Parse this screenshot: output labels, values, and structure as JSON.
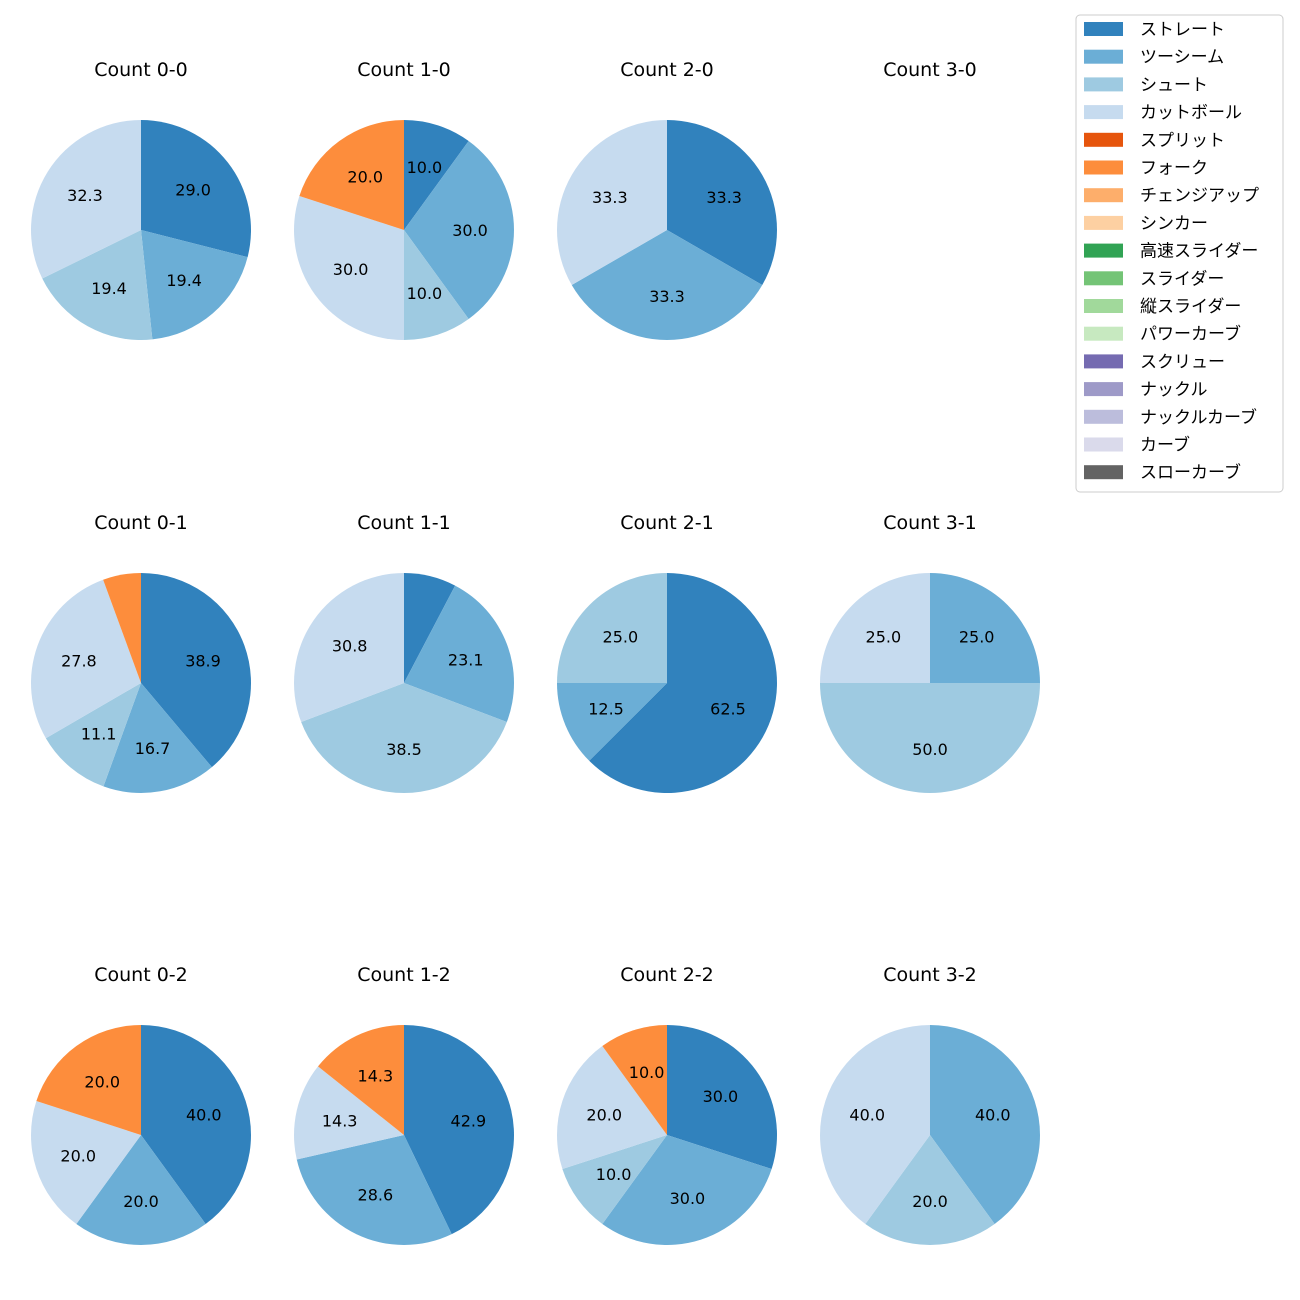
{
  "chart_data": {
    "type": "pie",
    "legend": {
      "placement": "top-right",
      "entries": [
        {
          "name": "ストレート",
          "color": "#3182bd"
        },
        {
          "name": "ツーシーム",
          "color": "#6baed6"
        },
        {
          "name": "シュート",
          "color": "#9ecae1"
        },
        {
          "name": "カットボール",
          "color": "#c6dbef"
        },
        {
          "name": "スプリット",
          "color": "#e6550d"
        },
        {
          "name": "フォーク",
          "color": "#fd8d3c"
        },
        {
          "name": "チェンジアップ",
          "color": "#fdae6b"
        },
        {
          "name": "シンカー",
          "color": "#fdd0a2"
        },
        {
          "name": "高速スライダー",
          "color": "#31a354"
        },
        {
          "name": "スライダー",
          "color": "#74c476"
        },
        {
          "name": "縦スライダー",
          "color": "#a1d99b"
        },
        {
          "name": "パワーカーブ",
          "color": "#c7e9c0"
        },
        {
          "name": "スクリュー",
          "color": "#756bb1"
        },
        {
          "name": "ナックル",
          "color": "#9e9ac8"
        },
        {
          "name": "ナックルカーブ",
          "color": "#bcbddc"
        },
        {
          "name": "カーブ",
          "color": "#dadaeb"
        },
        {
          "name": "スローカーブ",
          "color": "#636363"
        }
      ]
    },
    "pies": [
      {
        "title": "Count 0-0",
        "slices": [
          {
            "pitch": "ストレート",
            "value": 29.0,
            "label": "29.0"
          },
          {
            "pitch": "ツーシーム",
            "value": 19.4,
            "label": "19.4"
          },
          {
            "pitch": "シュート",
            "value": 19.4,
            "label": "19.4"
          },
          {
            "pitch": "カットボール",
            "value": 32.3,
            "label": "32.3"
          }
        ]
      },
      {
        "title": "Count 1-0",
        "slices": [
          {
            "pitch": "ストレート",
            "value": 10.0,
            "label": "10.0"
          },
          {
            "pitch": "ツーシーム",
            "value": 30.0,
            "label": "30.0"
          },
          {
            "pitch": "シュート",
            "value": 10.0,
            "label": "10.0"
          },
          {
            "pitch": "カットボール",
            "value": 30.0,
            "label": "30.0"
          },
          {
            "pitch": "フォーク",
            "value": 20.0,
            "label": "20.0"
          }
        ]
      },
      {
        "title": "Count 2-0",
        "slices": [
          {
            "pitch": "ストレート",
            "value": 33.3,
            "label": "33.3"
          },
          {
            "pitch": "ツーシーム",
            "value": 33.3,
            "label": "33.3"
          },
          {
            "pitch": "カットボール",
            "value": 33.3,
            "label": "33.3"
          }
        ]
      },
      {
        "title": "Count 3-0",
        "slices": []
      },
      {
        "title": "Count 0-1",
        "slices": [
          {
            "pitch": "ストレート",
            "value": 38.9,
            "label": "38.9"
          },
          {
            "pitch": "ツーシーム",
            "value": 16.7,
            "label": "16.7"
          },
          {
            "pitch": "シュート",
            "value": 11.1,
            "label": "11.1"
          },
          {
            "pitch": "カットボール",
            "value": 27.8,
            "label": "27.8"
          },
          {
            "pitch": "フォーク",
            "value": 5.6,
            "label": ""
          }
        ]
      },
      {
        "title": "Count 1-1",
        "slices": [
          {
            "pitch": "ストレート",
            "value": 7.7,
            "label": ""
          },
          {
            "pitch": "ツーシーム",
            "value": 23.1,
            "label": "23.1"
          },
          {
            "pitch": "シュート",
            "value": 38.5,
            "label": "38.5"
          },
          {
            "pitch": "カットボール",
            "value": 30.8,
            "label": "30.8"
          }
        ]
      },
      {
        "title": "Count 2-1",
        "slices": [
          {
            "pitch": "ストレート",
            "value": 62.5,
            "label": "62.5"
          },
          {
            "pitch": "ツーシーム",
            "value": 12.5,
            "label": "12.5"
          },
          {
            "pitch": "シュート",
            "value": 25.0,
            "label": "25.0"
          }
        ]
      },
      {
        "title": "Count 3-1",
        "slices": [
          {
            "pitch": "ツーシーム",
            "value": 25.0,
            "label": "25.0"
          },
          {
            "pitch": "シュート",
            "value": 50.0,
            "label": "50.0"
          },
          {
            "pitch": "カットボール",
            "value": 25.0,
            "label": "25.0"
          }
        ]
      },
      {
        "title": "Count 0-2",
        "slices": [
          {
            "pitch": "ストレート",
            "value": 40.0,
            "label": "40.0"
          },
          {
            "pitch": "ツーシーム",
            "value": 20.0,
            "label": "20.0"
          },
          {
            "pitch": "カットボール",
            "value": 20.0,
            "label": "20.0"
          },
          {
            "pitch": "フォーク",
            "value": 20.0,
            "label": "20.0"
          }
        ]
      },
      {
        "title": "Count 1-2",
        "slices": [
          {
            "pitch": "ストレート",
            "value": 42.9,
            "label": "42.9"
          },
          {
            "pitch": "ツーシーム",
            "value": 28.6,
            "label": "28.6"
          },
          {
            "pitch": "カットボール",
            "value": 14.3,
            "label": "14.3"
          },
          {
            "pitch": "フォーク",
            "value": 14.3,
            "label": "14.3"
          }
        ]
      },
      {
        "title": "Count 2-2",
        "slices": [
          {
            "pitch": "ストレート",
            "value": 30.0,
            "label": "30.0"
          },
          {
            "pitch": "ツーシーム",
            "value": 30.0,
            "label": "30.0"
          },
          {
            "pitch": "シュート",
            "value": 10.0,
            "label": "10.0"
          },
          {
            "pitch": "カットボール",
            "value": 20.0,
            "label": "20.0"
          },
          {
            "pitch": "フォーク",
            "value": 10.0,
            "label": "10.0"
          }
        ]
      },
      {
        "title": "Count 3-2",
        "slices": [
          {
            "pitch": "ツーシーム",
            "value": 40.0,
            "label": "40.0"
          },
          {
            "pitch": "シュート",
            "value": 20.0,
            "label": "20.0"
          },
          {
            "pitch": "カットボール",
            "value": 40.0,
            "label": "40.0"
          }
        ]
      }
    ]
  }
}
